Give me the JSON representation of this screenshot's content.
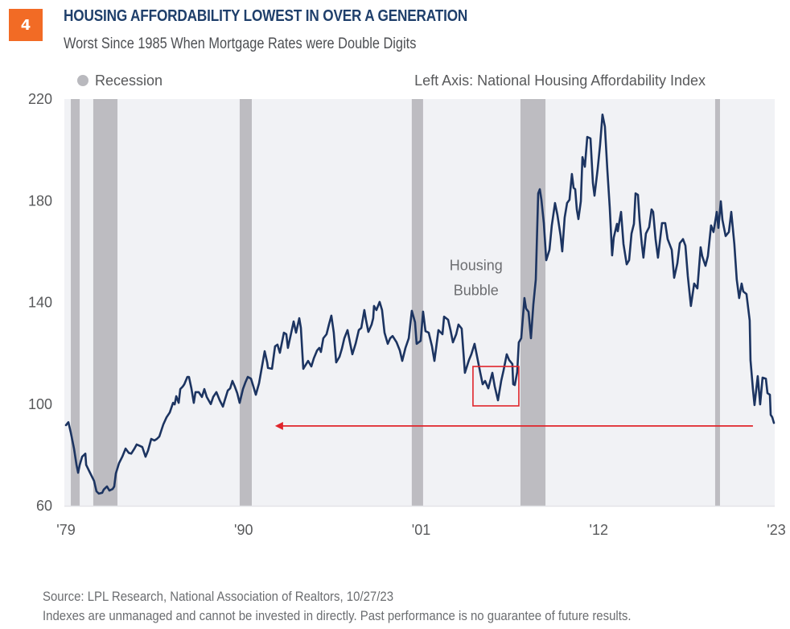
{
  "header": {
    "badge": "4",
    "badge_color": "#F26B25",
    "title": "HOUSING AFFORDABILITY LOWEST IN OVER A GENERATION",
    "title_color": "#1F3F6B",
    "subtitle": "Worst Since 1985 When Mortgage Rates were Double Digits"
  },
  "footer": {
    "source": "Source: LPL Research, National Association of Realtors,  10/27/23",
    "disclaimer": "Indexes are unmanaged and cannot be invested in directly. Past performance is no guarantee of future results."
  },
  "chart_data": {
    "type": "line",
    "title": "HOUSING AFFORDABILITY LOWEST IN OVER A GENERATION",
    "subtitle": "Worst Since 1985 When Mortgage Rates were Double Digits",
    "xlabel": "",
    "ylabel": "",
    "axis_note": "Left Axis: National Housing Affordability Index",
    "xlim": [
      1979,
      2023
    ],
    "ylim": [
      60,
      220
    ],
    "x_ticks": [
      {
        "value": 1979,
        "label": "'79"
      },
      {
        "value": 1990,
        "label": "'90"
      },
      {
        "value": 2001,
        "label": "'01"
      },
      {
        "value": 2012,
        "label": "'12"
      },
      {
        "value": 2023,
        "label": "'23"
      }
    ],
    "y_ticks": [
      60,
      100,
      140,
      180,
      220
    ],
    "grid": false,
    "legend": {
      "position": "top-left",
      "entries": [
        {
          "label": "Recession",
          "color": "#B9B9BE",
          "marker": "circle"
        }
      ]
    },
    "colors": {
      "line": "#1C3461",
      "recession": "#BDBCC1",
      "plot_bg": "#F1F2F5",
      "annotation": "#E0252B"
    },
    "recessions": [
      [
        1979.4,
        1979.95
      ],
      [
        1980.79,
        1982.29
      ],
      [
        1989.86,
        1990.61
      ],
      [
        2000.52,
        2001.22
      ],
      [
        2007.25,
        2008.8
      ],
      [
        2019.31,
        2019.61
      ]
    ],
    "annotations": {
      "bubble_label": {
        "lines": [
          "Housing",
          "Bubble"
        ],
        "x": 2004.5,
        "y": [
          154.5,
          144.8
        ]
      },
      "bubble_box": {
        "x": [
          2004.31,
          2007.15
        ],
        "y": [
          99.3,
          114.8
        ]
      },
      "arrow": {
        "from_x": 2021.65,
        "to_x": 1992.05,
        "y": 91.4
      }
    },
    "series": [
      {
        "name": "National Housing Affordability Index",
        "points": [
          [
            1979.1,
            91.7
          ],
          [
            1979.25,
            92.9
          ],
          [
            1979.4,
            88.8
          ],
          [
            1979.6,
            82.5
          ],
          [
            1979.75,
            76.1
          ],
          [
            1979.85,
            73.0
          ],
          [
            1979.95,
            76.1
          ],
          [
            1980.1,
            79.3
          ],
          [
            1980.3,
            80.5
          ],
          [
            1980.35,
            76.1
          ],
          [
            1980.59,
            73.0
          ],
          [
            1980.84,
            69.8
          ],
          [
            1980.99,
            65.7
          ],
          [
            1981.14,
            64.8
          ],
          [
            1981.34,
            65.1
          ],
          [
            1981.44,
            66.4
          ],
          [
            1981.64,
            67.6
          ],
          [
            1981.79,
            66.0
          ],
          [
            1981.99,
            66.6
          ],
          [
            1982.09,
            67.6
          ],
          [
            1982.19,
            72.7
          ],
          [
            1982.39,
            76.8
          ],
          [
            1982.59,
            79.3
          ],
          [
            1982.79,
            82.5
          ],
          [
            1982.99,
            80.8
          ],
          [
            1983.14,
            80.5
          ],
          [
            1983.34,
            82.5
          ],
          [
            1983.48,
            84.1
          ],
          [
            1983.63,
            83.7
          ],
          [
            1983.83,
            83.1
          ],
          [
            1984.03,
            79.3
          ],
          [
            1984.18,
            81.7
          ],
          [
            1984.38,
            86.3
          ],
          [
            1984.58,
            85.7
          ],
          [
            1984.73,
            86.3
          ],
          [
            1984.88,
            87.2
          ],
          [
            1985.13,
            92.0
          ],
          [
            1985.33,
            94.8
          ],
          [
            1985.53,
            96.7
          ],
          [
            1985.73,
            100.5
          ],
          [
            1985.83,
            99.9
          ],
          [
            1985.93,
            103.1
          ],
          [
            1986.08,
            100.5
          ],
          [
            1986.18,
            105.9
          ],
          [
            1986.33,
            106.9
          ],
          [
            1986.43,
            107.8
          ],
          [
            1986.62,
            110.7
          ],
          [
            1986.72,
            110.7
          ],
          [
            1986.87,
            106.2
          ],
          [
            1987.02,
            100.5
          ],
          [
            1987.12,
            104.7
          ],
          [
            1987.32,
            104.7
          ],
          [
            1987.52,
            102.8
          ],
          [
            1987.67,
            105.9
          ],
          [
            1987.82,
            102.8
          ],
          [
            1988.07,
            100.0
          ],
          [
            1988.22,
            102.8
          ],
          [
            1988.42,
            104.7
          ],
          [
            1988.62,
            101.5
          ],
          [
            1988.82,
            99.0
          ],
          [
            1988.92,
            101.2
          ],
          [
            1989.12,
            105.3
          ],
          [
            1989.27,
            106.2
          ],
          [
            1989.41,
            109.1
          ],
          [
            1989.56,
            106.9
          ],
          [
            1989.71,
            104.3
          ],
          [
            1989.86,
            100.5
          ],
          [
            1990.06,
            105.9
          ],
          [
            1990.21,
            108.5
          ],
          [
            1990.36,
            110.7
          ],
          [
            1990.56,
            110.0
          ],
          [
            1990.71,
            106.9
          ],
          [
            1990.86,
            103.7
          ],
          [
            1991.06,
            108.2
          ],
          [
            1991.26,
            115.4
          ],
          [
            1991.41,
            120.8
          ],
          [
            1991.56,
            116.4
          ],
          [
            1991.61,
            114.2
          ],
          [
            1991.86,
            113.9
          ],
          [
            1992.05,
            122.7
          ],
          [
            1992.2,
            123.4
          ],
          [
            1992.35,
            120.2
          ],
          [
            1992.6,
            128.1
          ],
          [
            1992.75,
            127.5
          ],
          [
            1992.85,
            122.1
          ],
          [
            1993.05,
            128.1
          ],
          [
            1993.2,
            132.5
          ],
          [
            1993.35,
            128.1
          ],
          [
            1993.55,
            133.8
          ],
          [
            1993.65,
            130.0
          ],
          [
            1993.8,
            113.9
          ],
          [
            1994.1,
            117.0
          ],
          [
            1994.3,
            114.8
          ],
          [
            1994.45,
            118.0
          ],
          [
            1994.65,
            121.1
          ],
          [
            1994.79,
            122.1
          ],
          [
            1994.89,
            120.5
          ],
          [
            1995.04,
            125.9
          ],
          [
            1995.24,
            127.5
          ],
          [
            1995.39,
            131.3
          ],
          [
            1995.54,
            134.8
          ],
          [
            1995.69,
            128.1
          ],
          [
            1995.84,
            116.4
          ],
          [
            1996.04,
            118.6
          ],
          [
            1996.19,
            121.8
          ],
          [
            1996.34,
            125.9
          ],
          [
            1996.54,
            129.1
          ],
          [
            1996.69,
            124.3
          ],
          [
            1996.84,
            119.6
          ],
          [
            1997.04,
            123.7
          ],
          [
            1997.24,
            129.1
          ],
          [
            1997.39,
            130.0
          ],
          [
            1997.58,
            137.0
          ],
          [
            1997.68,
            133.2
          ],
          [
            1997.83,
            128.4
          ],
          [
            1998.03,
            131.3
          ],
          [
            1998.13,
            133.8
          ],
          [
            1998.18,
            138.6
          ],
          [
            1998.33,
            137.0
          ],
          [
            1998.53,
            140.2
          ],
          [
            1998.68,
            137.0
          ],
          [
            1998.83,
            128.1
          ],
          [
            1999.03,
            123.7
          ],
          [
            1999.18,
            125.9
          ],
          [
            1999.33,
            126.8
          ],
          [
            1999.58,
            124.3
          ],
          [
            1999.78,
            121.1
          ],
          [
            1999.93,
            117.0
          ],
          [
            2000.13,
            122.1
          ],
          [
            2000.33,
            125.9
          ],
          [
            2000.52,
            136.7
          ],
          [
            2000.72,
            132.2
          ],
          [
            2000.82,
            123.7
          ],
          [
            2001.07,
            124.9
          ],
          [
            2001.22,
            136.4
          ],
          [
            2001.37,
            128.7
          ],
          [
            2001.57,
            128.1
          ],
          [
            2001.77,
            122.7
          ],
          [
            2001.92,
            117.0
          ],
          [
            2002.17,
            129.1
          ],
          [
            2002.42,
            127.5
          ],
          [
            2002.52,
            134.4
          ],
          [
            2002.77,
            133.2
          ],
          [
            2002.92,
            129.1
          ],
          [
            2003.07,
            124.3
          ],
          [
            2003.27,
            127.5
          ],
          [
            2003.41,
            131.3
          ],
          [
            2003.61,
            129.7
          ],
          [
            2003.81,
            112.3
          ],
          [
            2004.06,
            117.3
          ],
          [
            2004.21,
            119.6
          ],
          [
            2004.41,
            123.7
          ],
          [
            2004.61,
            117.3
          ],
          [
            2004.76,
            112.3
          ],
          [
            2004.91,
            107.8
          ],
          [
            2005.06,
            109.1
          ],
          [
            2005.26,
            106.2
          ],
          [
            2005.51,
            112.3
          ],
          [
            2005.66,
            106.9
          ],
          [
            2005.86,
            101.5
          ],
          [
            2006.06,
            109.1
          ],
          [
            2006.2,
            113.2
          ],
          [
            2006.4,
            119.6
          ],
          [
            2006.55,
            117.3
          ],
          [
            2006.75,
            115.8
          ],
          [
            2006.8,
            107.8
          ],
          [
            2006.9,
            107.5
          ],
          [
            2007.05,
            112.6
          ],
          [
            2007.15,
            124.3
          ],
          [
            2007.3,
            125.9
          ],
          [
            2007.5,
            141.7
          ],
          [
            2007.6,
            137.6
          ],
          [
            2007.75,
            136.3
          ],
          [
            2007.9,
            125.9
          ],
          [
            2008.05,
            139.3
          ],
          [
            2008.2,
            149.0
          ],
          [
            2008.35,
            182.9
          ],
          [
            2008.45,
            184.5
          ],
          [
            2008.55,
            180.4
          ],
          [
            2008.7,
            171.2
          ],
          [
            2008.85,
            156.6
          ],
          [
            2009.05,
            160.7
          ],
          [
            2009.19,
            170.3
          ],
          [
            2009.39,
            179.1
          ],
          [
            2009.54,
            174.4
          ],
          [
            2009.74,
            166.1
          ],
          [
            2009.84,
            160.1
          ],
          [
            2009.99,
            173.4
          ],
          [
            2010.14,
            179.1
          ],
          [
            2010.29,
            180.4
          ],
          [
            2010.44,
            190.5
          ],
          [
            2010.54,
            185.1
          ],
          [
            2010.64,
            184.5
          ],
          [
            2010.74,
            176.6
          ],
          [
            2010.84,
            172.8
          ],
          [
            2010.99,
            179.8
          ],
          [
            2011.09,
            197.2
          ],
          [
            2011.24,
            193.4
          ],
          [
            2011.39,
            205.1
          ],
          [
            2011.59,
            204.5
          ],
          [
            2011.74,
            187.0
          ],
          [
            2011.84,
            182.0
          ],
          [
            2012.03,
            192.4
          ],
          [
            2012.18,
            201.9
          ],
          [
            2012.33,
            213.9
          ],
          [
            2012.48,
            209.2
          ],
          [
            2012.63,
            192.4
          ],
          [
            2012.78,
            177.5
          ],
          [
            2012.93,
            158.5
          ],
          [
            2013.03,
            165.5
          ],
          [
            2013.23,
            170.9
          ],
          [
            2013.28,
            168.0
          ],
          [
            2013.48,
            175.6
          ],
          [
            2013.63,
            163.0
          ],
          [
            2013.83,
            155.0
          ],
          [
            2013.98,
            156.6
          ],
          [
            2014.13,
            167.1
          ],
          [
            2014.28,
            170.9
          ],
          [
            2014.38,
            182.9
          ],
          [
            2014.53,
            182.3
          ],
          [
            2014.63,
            172.5
          ],
          [
            2014.77,
            163.0
          ],
          [
            2014.87,
            157.6
          ],
          [
            2015.02,
            167.1
          ],
          [
            2015.22,
            169.6
          ],
          [
            2015.37,
            176.6
          ],
          [
            2015.47,
            175.6
          ],
          [
            2015.62,
            164.9
          ],
          [
            2015.77,
            157.6
          ],
          [
            2016.02,
            171.2
          ],
          [
            2016.22,
            171.2
          ],
          [
            2016.37,
            164.9
          ],
          [
            2016.62,
            160.7
          ],
          [
            2016.77,
            149.7
          ],
          [
            2016.97,
            155.4
          ],
          [
            2017.12,
            163.3
          ],
          [
            2017.32,
            164.9
          ],
          [
            2017.47,
            162.3
          ],
          [
            2017.62,
            150.3
          ],
          [
            2017.81,
            138.6
          ],
          [
            2018.01,
            147.4
          ],
          [
            2018.21,
            145.5
          ],
          [
            2018.41,
            161.7
          ],
          [
            2018.51,
            158.2
          ],
          [
            2018.71,
            154.4
          ],
          [
            2018.86,
            158.2
          ],
          [
            2019.06,
            170.3
          ],
          [
            2019.21,
            167.7
          ],
          [
            2019.41,
            175.6
          ],
          [
            2019.51,
            169.3
          ],
          [
            2019.66,
            179.8
          ],
          [
            2019.76,
            172.5
          ],
          [
            2019.96,
            166.1
          ],
          [
            2020.16,
            167.7
          ],
          [
            2020.31,
            175.6
          ],
          [
            2020.5,
            163.0
          ],
          [
            2020.65,
            149.0
          ],
          [
            2020.8,
            141.7
          ],
          [
            2020.95,
            147.4
          ],
          [
            2021.05,
            144.3
          ],
          [
            2021.25,
            143.3
          ],
          [
            2021.45,
            132.9
          ],
          [
            2021.5,
            117.3
          ],
          [
            2021.65,
            105.9
          ],
          [
            2021.75,
            99.6
          ],
          [
            2021.95,
            111.0
          ],
          [
            2022.1,
            99.9
          ],
          [
            2022.25,
            110.4
          ],
          [
            2022.45,
            110.0
          ],
          [
            2022.55,
            104.3
          ],
          [
            2022.7,
            103.7
          ],
          [
            2022.75,
            95.8
          ],
          [
            2022.85,
            94.8
          ],
          [
            2022.95,
            92.6
          ]
        ]
      }
    ]
  }
}
